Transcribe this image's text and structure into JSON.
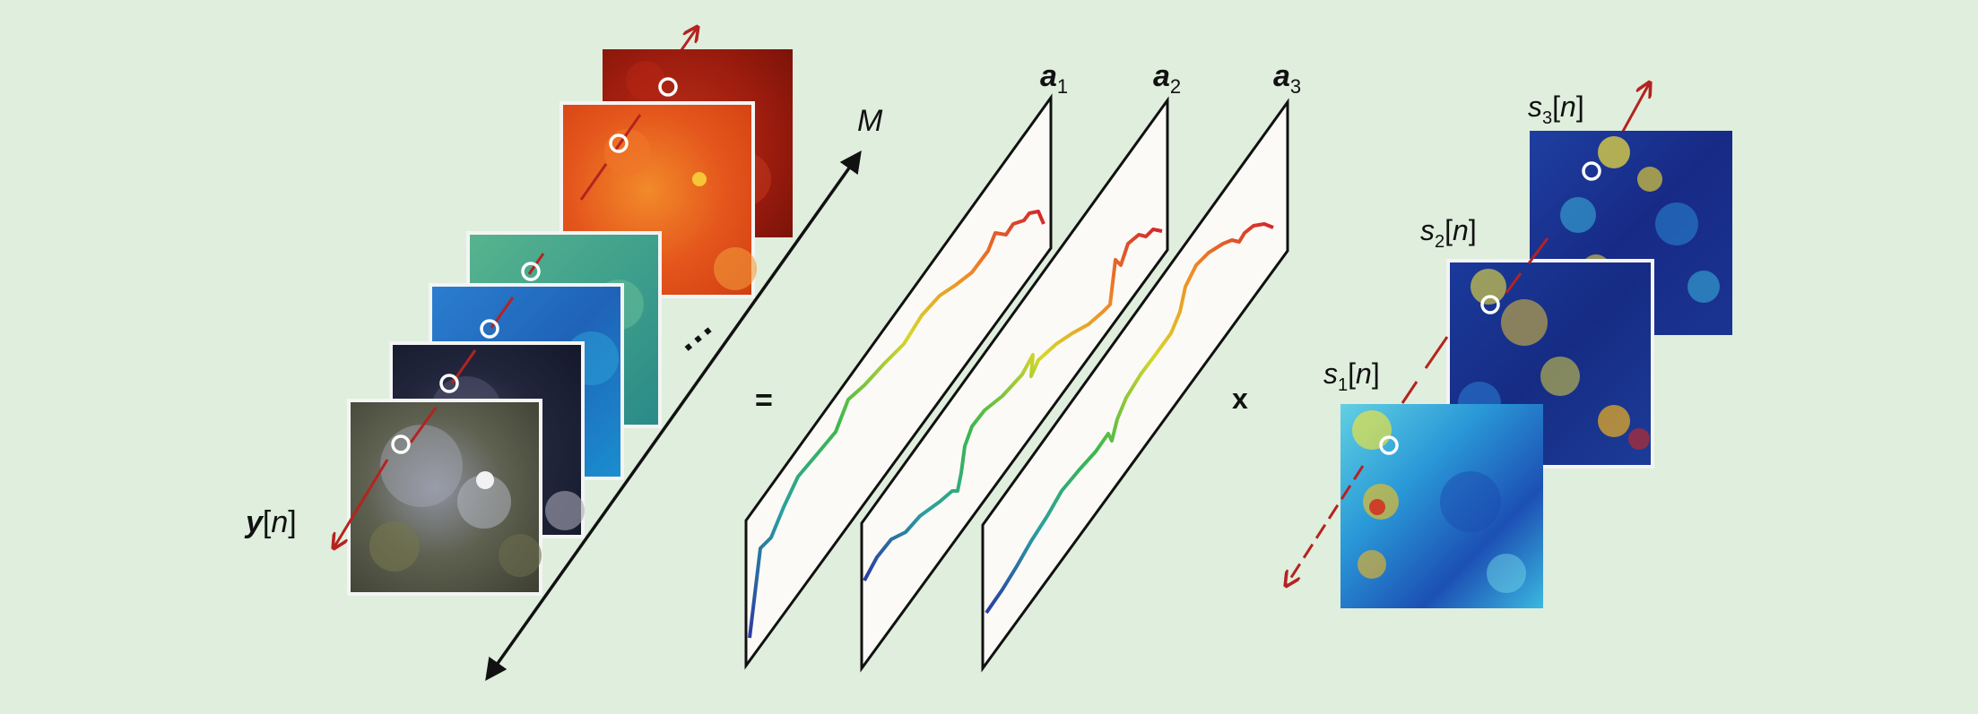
{
  "figure": {
    "background": "#dfeedd",
    "hyperspectral_cube": {
      "axis_label": "M",
      "pixel_label_var": "y",
      "pixel_label_idx": "n",
      "ellipsis": "···",
      "band_colors": [
        "#9b1c0e",
        "#e4551c",
        "#3fa08c",
        "#1f63b8",
        "#1b2038",
        "#4a4a3c"
      ]
    },
    "equals_sign": "=",
    "endmembers": {
      "labels": [
        {
          "var": "a",
          "sub": "1"
        },
        {
          "var": "a",
          "sub": "2"
        },
        {
          "var": "a",
          "sub": "3"
        }
      ],
      "spectrum_colors": [
        "#2c3aa4",
        "#2aa0a0",
        "#3db84c",
        "#d6d62a",
        "#f08a28",
        "#d2262a"
      ]
    },
    "times_sign": "x",
    "abundances": {
      "labels": [
        {
          "var": "s",
          "sub": "1",
          "idx": "n"
        },
        {
          "var": "s",
          "sub": "2",
          "idx": "n"
        },
        {
          "var": "s",
          "sub": "3",
          "idx": "n"
        }
      ],
      "map_colors": [
        "#1b2a8c",
        "#1a7fd0",
        "#3ec4e6",
        "#f2e33a",
        "#d22a1e"
      ]
    },
    "arrow_color": "#b5231f",
    "marker_color": "#ffffff"
  }
}
